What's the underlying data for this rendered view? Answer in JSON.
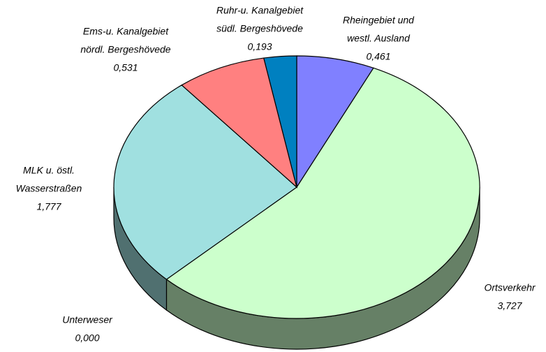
{
  "chart_data": {
    "type": "pie3d",
    "categories": [
      [
        "Rheingebiet und",
        "westl. Ausland"
      ],
      [
        "Ortsverkehr"
      ],
      [
        "Unterweser"
      ],
      [
        "MLK u. östl.",
        "Wasserstraßen"
      ],
      [
        "Ems-u. Kanalgebiet",
        "nördl. Bergeshövede"
      ],
      [
        "Ruhr-u. Kanalgebiet",
        "südl. Bergeshövede"
      ]
    ],
    "values": [
      0.461,
      3.727,
      0,
      1.777,
      0.531,
      0.193
    ],
    "value_labels": [
      "0,461",
      "3,727",
      "0,000",
      "1,777",
      "0,531",
      "0,193"
    ],
    "colors": [
      "#8080ff",
      "#ccffcc",
      "#ffffcc",
      "#a0e0e0",
      "#ff8080",
      "#0080c0"
    ],
    "side_colors": [
      "#404080",
      "#668066",
      "#808066",
      "#507070",
      "#804040",
      "#004060"
    ]
  }
}
